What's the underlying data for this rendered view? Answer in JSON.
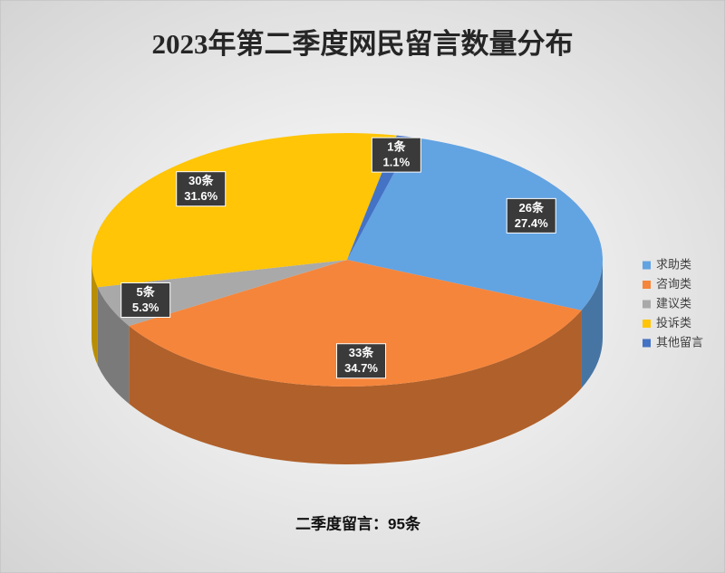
{
  "chart_data": {
    "type": "pie3d",
    "title": "2023年第二季度网民留言数量分布",
    "categories": [
      "求助类",
      "咨询类",
      "建议类",
      "投诉类",
      "其他留言"
    ],
    "values": [
      26,
      33,
      5,
      30,
      1
    ],
    "value_labels": [
      "26条",
      "33条",
      "5条",
      "30条",
      "1条"
    ],
    "percent_labels": [
      "27.4%",
      "34.7%",
      "5.3%",
      "31.6%",
      "1.1%"
    ],
    "colors": [
      "#62a3e2",
      "#f5853b",
      "#a9a9a9",
      "#ffc506",
      "#4472c4"
    ],
    "legend": "right",
    "annotation": "二季度留言：95条"
  }
}
